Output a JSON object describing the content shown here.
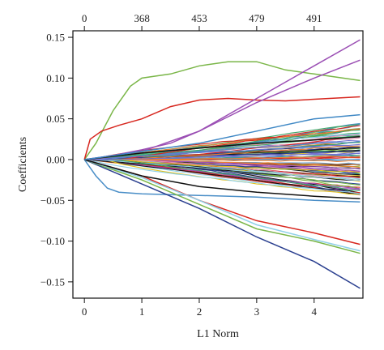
{
  "chart_data": {
    "type": "line",
    "title": "",
    "xlabel": "L1 Norm",
    "ylabel": "Coefficients",
    "xlim": [
      -0.2,
      4.85
    ],
    "ylim": [
      -0.17,
      0.158
    ],
    "x_ticks": [
      0,
      1,
      2,
      3,
      4
    ],
    "x_tick_labels": [
      "0",
      "1",
      "2",
      "3",
      "4"
    ],
    "y_ticks": [
      0.15,
      0.1,
      0.05,
      0.0,
      -0.05,
      -0.1,
      -0.15
    ],
    "y_tick_labels": [
      "0.15",
      "0.10",
      "0.05",
      "0.00",
      "−0.05",
      "−0.10",
      "−0.15"
    ],
    "top_axis_ticks": [
      0,
      1,
      2,
      3,
      4
    ],
    "top_axis_labels": [
      "0",
      "368",
      "453",
      "479",
      "491"
    ],
    "grid": false,
    "legend": "none",
    "highlighted_series": [
      {
        "color": "#7ab648",
        "x": [
          0,
          0.2,
          0.5,
          0.8,
          1.0,
          1.5,
          2.0,
          2.5,
          3.0,
          3.5,
          4.0,
          4.8
        ],
        "y": [
          0,
          0.02,
          0.06,
          0.09,
          0.1,
          0.105,
          0.115,
          0.12,
          0.12,
          0.11,
          0.105,
          0.097
        ]
      },
      {
        "color": "#d7261e",
        "x": [
          0,
          0.1,
          0.3,
          0.6,
          1.0,
          1.5,
          2.0,
          2.5,
          3.0,
          3.5,
          4.0,
          4.8
        ],
        "y": [
          0,
          0.025,
          0.035,
          0.042,
          0.05,
          0.065,
          0.073,
          0.075,
          0.073,
          0.072,
          0.074,
          0.077
        ]
      },
      {
        "color": "#9b4fb4",
        "x": [
          0,
          0.5,
          1.0,
          1.5,
          2.0,
          2.5,
          3.0,
          3.5,
          4.0,
          4.8
        ],
        "y": [
          0,
          0.005,
          0.012,
          0.02,
          0.035,
          0.055,
          0.075,
          0.095,
          0.115,
          0.147
        ]
      },
      {
        "color": "#9b4fb4",
        "x": [
          0,
          1.0,
          2.0,
          3.0,
          4.0,
          4.8
        ],
        "y": [
          0,
          0.01,
          0.035,
          0.07,
          0.1,
          0.122
        ]
      },
      {
        "color": "#4a8ec7",
        "x": [
          0,
          0.2,
          0.4,
          0.6,
          1.0,
          1.5,
          2.0,
          3.0,
          4.0,
          4.8
        ],
        "y": [
          0,
          -0.02,
          -0.035,
          -0.04,
          -0.042,
          -0.043,
          -0.044,
          -0.046,
          -0.05,
          -0.052
        ]
      },
      {
        "color": "#2a3f8f",
        "x": [
          0,
          1.0,
          2.0,
          3.0,
          4.0,
          4.8
        ],
        "y": [
          0,
          -0.03,
          -0.06,
          -0.095,
          -0.125,
          -0.158
        ]
      },
      {
        "color": "#d7261e",
        "x": [
          0,
          1.0,
          2.0,
          3.0,
          4.0,
          4.8
        ],
        "y": [
          0,
          -0.02,
          -0.05,
          -0.075,
          -0.09,
          -0.104
        ]
      },
      {
        "color": "#7ab648",
        "x": [
          0,
          1.0,
          2.0,
          3.0,
          4.0,
          4.8
        ],
        "y": [
          0,
          -0.025,
          -0.055,
          -0.085,
          -0.1,
          -0.115
        ]
      },
      {
        "color": "#8fd0e8",
        "x": [
          0,
          1.0,
          2.0,
          3.0,
          4.0,
          4.8
        ],
        "y": [
          0,
          -0.022,
          -0.05,
          -0.08,
          -0.098,
          -0.112
        ]
      },
      {
        "color": "#111111",
        "x": [
          0,
          1.0,
          2.0,
          3.0,
          4.0,
          4.8
        ],
        "y": [
          0,
          -0.02,
          -0.033,
          -0.04,
          -0.045,
          -0.048
        ]
      },
      {
        "color": "#111111",
        "x": [
          0,
          1.0,
          2.0,
          3.0,
          4.0,
          4.8
        ],
        "y": [
          0,
          0.008,
          0.014,
          0.02,
          0.024,
          0.028
        ]
      },
      {
        "color": "#3f88c5",
        "x": [
          0,
          1.0,
          2.0,
          3.0,
          4.0,
          4.8
        ],
        "y": [
          0,
          0.01,
          0.02,
          0.035,
          0.05,
          0.055
        ]
      }
    ],
    "background_series_count": 90,
    "palette": [
      "#7ab648",
      "#d7261e",
      "#9b4fb4",
      "#4a8ec7",
      "#2a3f8f",
      "#111111",
      "#e0c020",
      "#8fd0e8",
      "#e88fb0",
      "#3fa86a",
      "#f08030",
      "#7070d0"
    ]
  }
}
